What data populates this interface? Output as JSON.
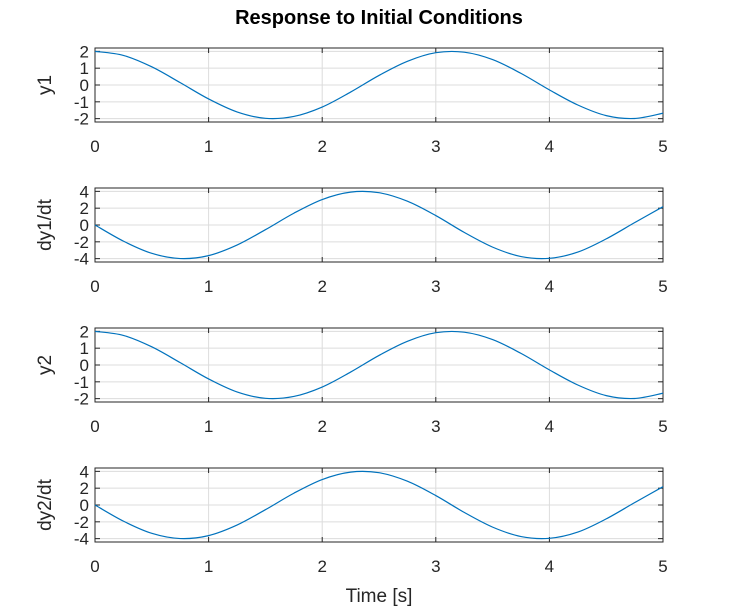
{
  "chart_data": {
    "title": "Response to Initial Conditions",
    "xlabel": "Time [s]",
    "grid": true,
    "line_color": "#0072bd",
    "subplots": [
      {
        "type": "line",
        "ylabel": "y1",
        "xlim": [
          0,
          5
        ],
        "ylim": [
          -2.2,
          2.2
        ],
        "xticks": [
          0,
          1,
          2,
          3,
          4,
          5
        ],
        "yticks": [
          -2,
          -1,
          0,
          1,
          2
        ],
        "x": [
          0,
          0.25,
          0.5,
          0.75,
          1.0,
          1.25,
          1.5,
          1.75,
          2.0,
          2.25,
          2.5,
          2.75,
          3.0,
          3.25,
          3.5,
          3.75,
          4.0,
          4.25,
          4.5,
          4.75,
          5.0
        ],
        "y": [
          2.0,
          1.76,
          1.08,
          0.14,
          -0.83,
          -1.6,
          -1.98,
          -1.87,
          -1.31,
          -0.42,
          0.57,
          1.41,
          1.92,
          1.95,
          1.51,
          0.69,
          -0.29,
          -1.19,
          -1.82,
          -1.99,
          -1.68
        ]
      },
      {
        "type": "line",
        "ylabel": "dy1/dt",
        "xlim": [
          0,
          5
        ],
        "ylim": [
          -4.4,
          4.4
        ],
        "xticks": [
          0,
          1,
          2,
          3,
          4,
          5
        ],
        "yticks": [
          -4,
          -2,
          0,
          2,
          4
        ],
        "x": [
          0,
          0.25,
          0.5,
          0.75,
          1.0,
          1.25,
          1.5,
          1.75,
          2.0,
          2.25,
          2.5,
          2.75,
          3.0,
          3.25,
          3.5,
          3.75,
          4.0,
          4.25,
          4.5,
          4.75,
          5.0
        ],
        "y": [
          0.0,
          -1.92,
          -3.37,
          -3.99,
          -3.64,
          -2.39,
          -0.56,
          1.4,
          3.03,
          3.91,
          3.84,
          2.83,
          1.12,
          -0.88,
          -2.63,
          -3.75,
          -3.96,
          -3.22,
          -1.65,
          0.28,
          2.18
        ]
      },
      {
        "type": "line",
        "ylabel": "y2",
        "xlim": [
          0,
          5
        ],
        "ylim": [
          -2.2,
          2.2
        ],
        "xticks": [
          0,
          1,
          2,
          3,
          4,
          5
        ],
        "yticks": [
          -2,
          -1,
          0,
          1,
          2
        ],
        "x": [
          0,
          0.25,
          0.5,
          0.75,
          1.0,
          1.25,
          1.5,
          1.75,
          2.0,
          2.25,
          2.5,
          2.75,
          3.0,
          3.25,
          3.5,
          3.75,
          4.0,
          4.25,
          4.5,
          4.75,
          5.0
        ],
        "y": [
          2.0,
          1.76,
          1.08,
          0.14,
          -0.83,
          -1.6,
          -1.98,
          -1.87,
          -1.31,
          -0.42,
          0.57,
          1.41,
          1.92,
          1.95,
          1.51,
          0.69,
          -0.29,
          -1.19,
          -1.82,
          -1.99,
          -1.68
        ]
      },
      {
        "type": "line",
        "ylabel": "dy2/dt",
        "xlim": [
          0,
          5
        ],
        "ylim": [
          -4.4,
          4.4
        ],
        "xticks": [
          0,
          1,
          2,
          3,
          4,
          5
        ],
        "yticks": [
          -4,
          -2,
          0,
          2,
          4
        ],
        "x": [
          0,
          0.25,
          0.5,
          0.75,
          1.0,
          1.25,
          1.5,
          1.75,
          2.0,
          2.25,
          2.5,
          2.75,
          3.0,
          3.25,
          3.5,
          3.75,
          4.0,
          4.25,
          4.5,
          4.75,
          5.0
        ],
        "y": [
          0.0,
          -1.92,
          -3.37,
          -3.99,
          -3.64,
          -2.39,
          -0.56,
          1.4,
          3.03,
          3.91,
          3.84,
          2.83,
          1.12,
          -0.88,
          -2.63,
          -3.75,
          -3.96,
          -3.22,
          -1.65,
          0.28,
          2.18
        ]
      }
    ]
  }
}
